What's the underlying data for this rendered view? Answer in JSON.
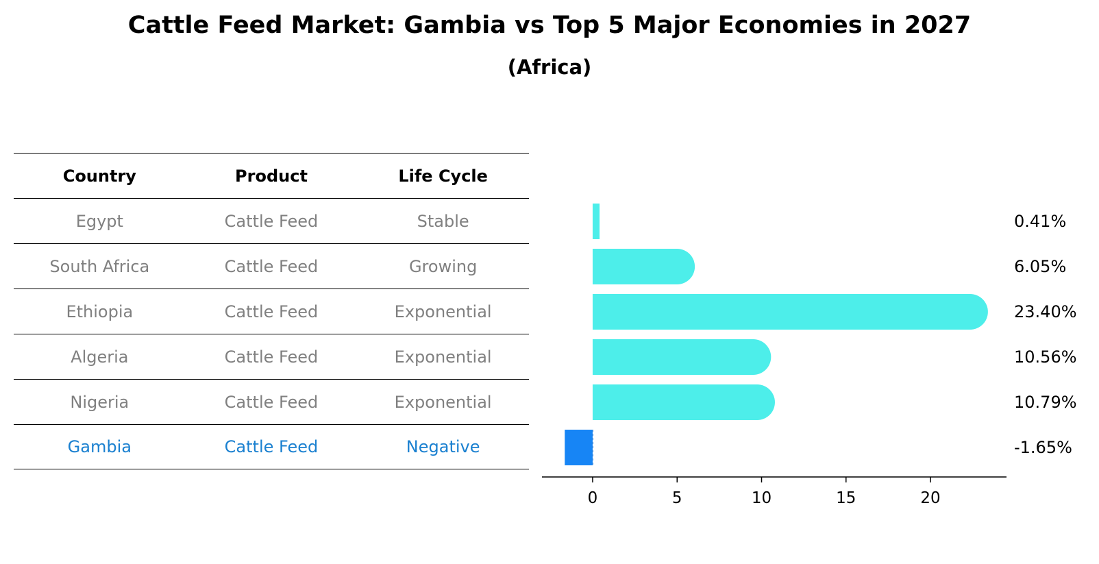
{
  "title": "Cattle Feed Market: Gambia vs Top 5 Major Economies in 2027",
  "subtitle": "(Africa)",
  "table": {
    "headers": [
      "Country",
      "Product",
      "Life Cycle"
    ],
    "rows": [
      [
        "Egypt",
        "Cattle Feed",
        "Stable"
      ],
      [
        "South Africa",
        "Cattle Feed",
        "Growing"
      ],
      [
        "Ethiopia",
        "Cattle Feed",
        "Exponential"
      ],
      [
        "Algeria",
        "Cattle Feed",
        "Exponential"
      ],
      [
        "Nigeria",
        "Cattle Feed",
        "Exponential"
      ],
      [
        "Gambia",
        "Cattle Feed",
        "Negative"
      ]
    ],
    "highlight_row": 5
  },
  "chart_data": {
    "type": "bar",
    "orientation": "horizontal",
    "categories": [
      "Egypt",
      "South Africa",
      "Ethiopia",
      "Algeria",
      "Nigeria",
      "Gambia"
    ],
    "values": [
      0.41,
      6.05,
      23.4,
      10.56,
      10.79,
      -1.65
    ],
    "value_labels": [
      "0.41%",
      "6.05%",
      "23.40%",
      "10.56%",
      "10.79%",
      "-1.65%"
    ],
    "xticks": [
      0,
      5,
      10,
      15,
      20
    ],
    "xlim": [
      -3,
      24.5
    ],
    "colors": {
      "default": "#4deeea",
      "highlight": "#1785f5"
    },
    "highlight_index": 5
  }
}
